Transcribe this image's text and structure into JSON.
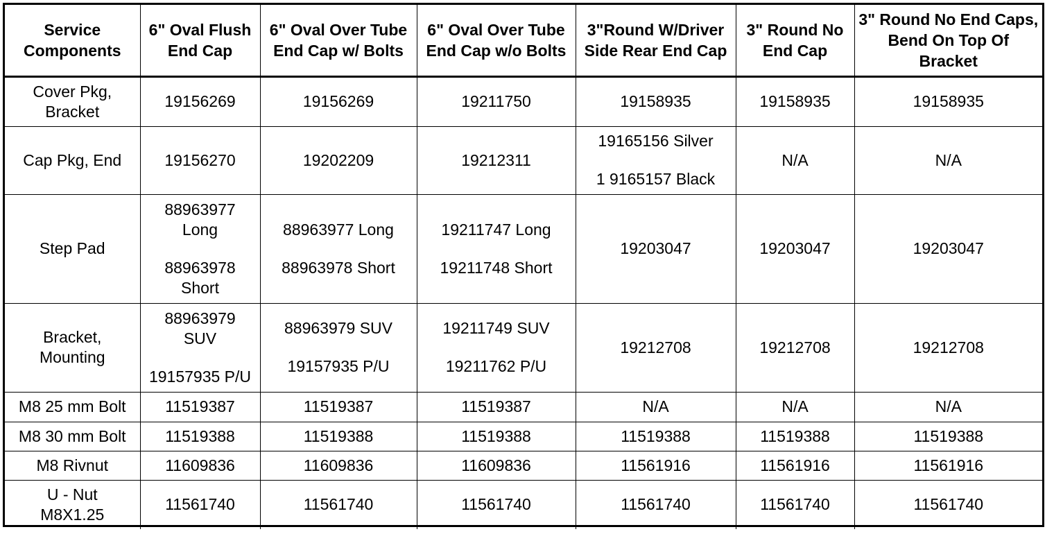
{
  "table": {
    "headers": [
      "Service Components",
      "6\" Oval Flush End Cap",
      "6\" Oval Over Tube End Cap w/ Bolts",
      "6\" Oval Over Tube End Cap w/o Bolts",
      "3\"Round W/Driver Side Rear End Cap",
      "3\" Round No End Cap",
      "3\" Round No End Caps, Bend On Top Of Bracket"
    ],
    "rows": [
      {
        "component": "Cover Pkg, Bracket",
        "c1": "19156269",
        "c2": "19156269",
        "c3": "19211750",
        "c4": "19158935",
        "c5": "19158935",
        "c6": "19158935"
      },
      {
        "component": "Cap Pkg, End",
        "c1": "19156270",
        "c2": "19202209",
        "c3": "19212311",
        "c4a": "19165156 Silver",
        "c4b": "1 9165157 Black",
        "c5": "N/A",
        "c6": "N/A"
      },
      {
        "component": "Step Pad",
        "c1a": "88963977 Long",
        "c1b": "88963978 Short",
        "c2a": "88963977 Long",
        "c2b": "88963978 Short",
        "c3a": "19211747 Long",
        "c3b": "19211748 Short",
        "c4": "19203047",
        "c5": "19203047",
        "c6": "19203047"
      },
      {
        "component": "Bracket, Mounting",
        "c1a": "88963979 SUV",
        "c1b": "19157935 P/U",
        "c2a": "88963979 SUV",
        "c2b": "19157935 P/U",
        "c3a": "19211749 SUV",
        "c3b": "19211762 P/U",
        "c4": "19212708",
        "c5": "19212708",
        "c6": "19212708"
      },
      {
        "component": "M8 25 mm Bolt",
        "c1": "11519387",
        "c2": "11519387",
        "c3": "11519387",
        "c4": "N/A",
        "c5": "N/A",
        "c6": "N/A"
      },
      {
        "component": "M8 30 mm Bolt",
        "c1": "11519388",
        "c2": "11519388",
        "c3": "11519388",
        "c4": "11519388",
        "c5": "11519388",
        "c6": "11519388"
      },
      {
        "component": "M8 Rivnut",
        "c1": "11609836",
        "c2": "11609836",
        "c3": "11609836",
        "c4": "11561916",
        "c5": "11561916",
        "c6": "11561916"
      },
      {
        "component": "U - Nut M8X1.25",
        "c1": "11561740",
        "c2": "11561740",
        "c3": "11561740",
        "c4": "11561740",
        "c5": "11561740",
        "c6": "11561740"
      }
    ]
  }
}
